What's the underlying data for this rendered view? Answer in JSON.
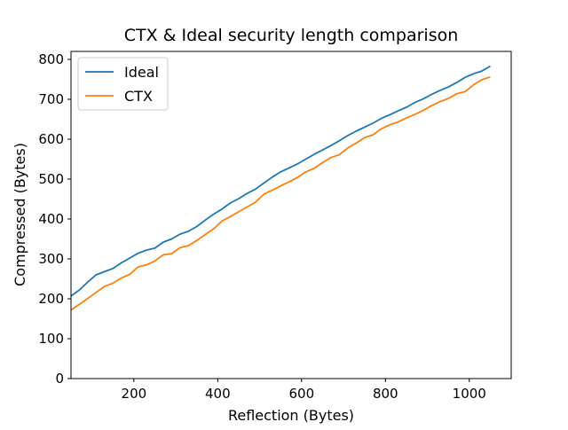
{
  "chart_data": {
    "type": "line",
    "title": "CTX & Ideal security length comparison",
    "xlabel": "Reflection (Bytes)",
    "ylabel": "Compressed (Bytes)",
    "xlim": [
      50,
      1100
    ],
    "ylim": [
      0,
      820
    ],
    "xticks": [
      200,
      400,
      600,
      800,
      1000
    ],
    "yticks": [
      0,
      100,
      200,
      300,
      400,
      500,
      600,
      700,
      800
    ],
    "grid": false,
    "legend_position": "top-left",
    "series": [
      {
        "name": "Ideal",
        "color": "#1f77b4",
        "x": [
          50,
          70,
          90,
          110,
          130,
          150,
          170,
          190,
          210,
          230,
          250,
          270,
          290,
          310,
          330,
          350,
          370,
          390,
          410,
          430,
          450,
          470,
          490,
          510,
          530,
          550,
          570,
          590,
          610,
          630,
          650,
          670,
          690,
          710,
          730,
          750,
          770,
          790,
          810,
          830,
          850,
          870,
          890,
          910,
          930,
          950,
          970,
          990,
          1010,
          1030,
          1050
        ],
        "values": [
          207,
          222,
          242,
          260,
          268,
          276,
          290,
          302,
          314,
          322,
          327,
          342,
          350,
          362,
          369,
          381,
          397,
          412,
          425,
          440,
          451,
          464,
          475,
          490,
          505,
          518,
          528,
          538,
          550,
          562,
          573,
          584,
          596,
          609,
          620,
          630,
          640,
          652,
          661,
          671,
          680,
          692,
          701,
          712,
          722,
          731,
          742,
          755,
          764,
          771,
          783
        ]
      },
      {
        "name": "CTX",
        "color": "#ff7f0e",
        "x": [
          50,
          70,
          90,
          110,
          130,
          150,
          170,
          190,
          210,
          230,
          250,
          270,
          290,
          310,
          330,
          350,
          370,
          390,
          410,
          430,
          450,
          470,
          490,
          510,
          530,
          550,
          570,
          590,
          610,
          630,
          650,
          670,
          690,
          710,
          730,
          750,
          770,
          790,
          810,
          830,
          850,
          870,
          890,
          910,
          930,
          950,
          970,
          990,
          1010,
          1030,
          1050
        ],
        "values": [
          172,
          186,
          201,
          216,
          231,
          239,
          252,
          261,
          280,
          285,
          295,
          310,
          313,
          328,
          333,
          346,
          361,
          375,
          395,
          406,
          418,
          430,
          442,
          462,
          472,
          483,
          493,
          504,
          518,
          527,
          541,
          554,
          561,
          578,
          590,
          604,
          611,
          626,
          636,
          643,
          653,
          662,
          672,
          684,
          694,
          702,
          714,
          719,
          736,
          749,
          756
        ]
      }
    ]
  }
}
